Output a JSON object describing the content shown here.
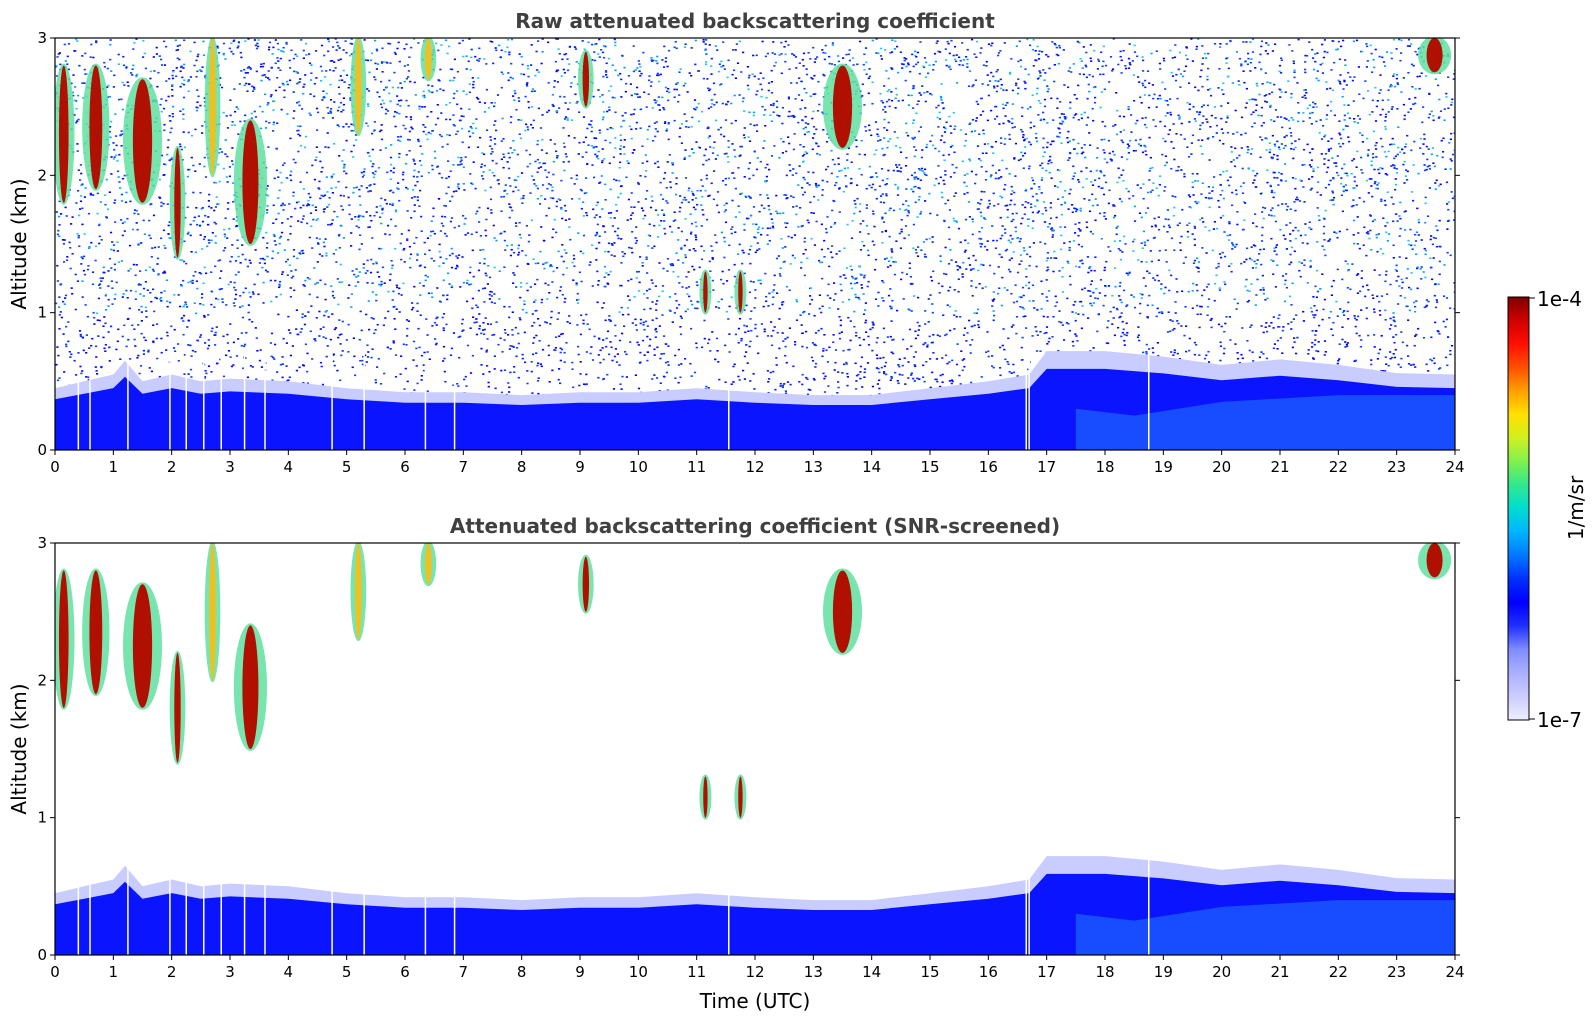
{
  "chart_data": [
    {
      "type": "heatmap",
      "title": "Raw attenuated backscattering coefficient",
      "ylabel": "Altitude (km)",
      "xlabel": "",
      "xlim": [
        0,
        24
      ],
      "ylim": [
        0,
        3
      ],
      "xticks": [
        "0",
        "1",
        "2",
        "3",
        "4",
        "5",
        "6",
        "7",
        "8",
        "9",
        "10",
        "11",
        "12",
        "13",
        "14",
        "15",
        "16",
        "17",
        "18",
        "19",
        "20",
        "21",
        "22",
        "23",
        "24"
      ],
      "yticks": [
        "0",
        "1",
        "2",
        "3"
      ],
      "boundary_layer_top_km": [
        [
          0,
          0.45
        ],
        [
          0.5,
          0.5
        ],
        [
          1,
          0.55
        ],
        [
          1.2,
          0.65
        ],
        [
          1.5,
          0.5
        ],
        [
          2,
          0.55
        ],
        [
          2.5,
          0.5
        ],
        [
          3,
          0.52
        ],
        [
          4,
          0.5
        ],
        [
          5,
          0.45
        ],
        [
          6,
          0.42
        ],
        [
          7,
          0.42
        ],
        [
          8,
          0.4
        ],
        [
          9,
          0.42
        ],
        [
          10,
          0.42
        ],
        [
          11,
          0.45
        ],
        [
          12,
          0.42
        ],
        [
          13,
          0.4
        ],
        [
          14,
          0.4
        ],
        [
          15,
          0.45
        ],
        [
          16,
          0.5
        ],
        [
          16.7,
          0.55
        ],
        [
          17,
          0.72
        ],
        [
          18,
          0.72
        ],
        [
          19,
          0.68
        ],
        [
          20,
          0.62
        ],
        [
          21,
          0.66
        ],
        [
          22,
          0.62
        ],
        [
          23,
          0.56
        ],
        [
          24,
          0.55
        ]
      ],
      "cloud_features": [
        {
          "t0": 0.0,
          "t1": 0.3,
          "z0": 1.8,
          "z1": 2.8,
          "level": "strong"
        },
        {
          "t0": 0.5,
          "t1": 0.9,
          "z0": 1.9,
          "z1": 2.8,
          "level": "strong"
        },
        {
          "t0": 1.2,
          "t1": 1.8,
          "z0": 1.8,
          "z1": 2.7,
          "level": "strong"
        },
        {
          "t0": 2.0,
          "t1": 2.2,
          "z0": 1.4,
          "z1": 2.2,
          "level": "strong"
        },
        {
          "t0": 3.1,
          "t1": 3.6,
          "z0": 1.5,
          "z1": 2.4,
          "level": "strong"
        },
        {
          "t0": 2.6,
          "t1": 2.8,
          "z0": 2.0,
          "z1": 3.0,
          "level": "moderate"
        },
        {
          "t0": 5.1,
          "t1": 5.3,
          "z0": 2.3,
          "z1": 3.0,
          "level": "moderate"
        },
        {
          "t0": 6.3,
          "t1": 6.5,
          "z0": 2.7,
          "z1": 3.0,
          "level": "moderate"
        },
        {
          "t0": 9.0,
          "t1": 9.2,
          "z0": 2.5,
          "z1": 2.9,
          "level": "strong"
        },
        {
          "t0": 11.1,
          "t1": 11.2,
          "z0": 1.0,
          "z1": 1.3,
          "level": "strong"
        },
        {
          "t0": 11.7,
          "t1": 11.8,
          "z0": 1.0,
          "z1": 1.3,
          "level": "strong"
        },
        {
          "t0": 13.2,
          "t1": 13.8,
          "z0": 2.2,
          "z1": 2.8,
          "level": "strong"
        },
        {
          "t0": 23.4,
          "t1": 23.9,
          "z0": 2.75,
          "z1": 3.0,
          "level": "strong"
        }
      ],
      "missing_profiles_utc": [
        0.4,
        0.6,
        1.25,
        1.97,
        2.25,
        2.55,
        2.85,
        3.25,
        3.6,
        4.75,
        5.3,
        6.35,
        6.85,
        11.55,
        16.65,
        16.7,
        18.75
      ],
      "noise": true
    },
    {
      "type": "heatmap",
      "title": "Attenuated backscattering coefficient (SNR-screened)",
      "ylabel": "Altitude (km)",
      "xlabel": "Time (UTC)",
      "xlim": [
        0,
        24
      ],
      "ylim": [
        0,
        3
      ],
      "xticks": [
        "0",
        "1",
        "2",
        "3",
        "4",
        "5",
        "6",
        "7",
        "8",
        "9",
        "10",
        "11",
        "12",
        "13",
        "14",
        "15",
        "16",
        "17",
        "18",
        "19",
        "20",
        "21",
        "22",
        "23",
        "24"
      ],
      "yticks": [
        "0",
        "1",
        "2",
        "3"
      ],
      "noise": false,
      "same_features_as_panel": 0
    }
  ],
  "colorbar": {
    "label": "1/m/sr",
    "max_label": "1e-4",
    "min_label": "1e-7",
    "colors": [
      "#eeeeff",
      "#ccccff",
      "#aab0ff",
      "#7f8cff",
      "#2030ff",
      "#0000ff",
      "#0030ff",
      "#0078ff",
      "#00b4ff",
      "#00dcd0",
      "#30e890",
      "#80f050",
      "#d0f020",
      "#ffe000",
      "#ffa000",
      "#ff5000",
      "#ff1000",
      "#d00000",
      "#800000"
    ]
  }
}
